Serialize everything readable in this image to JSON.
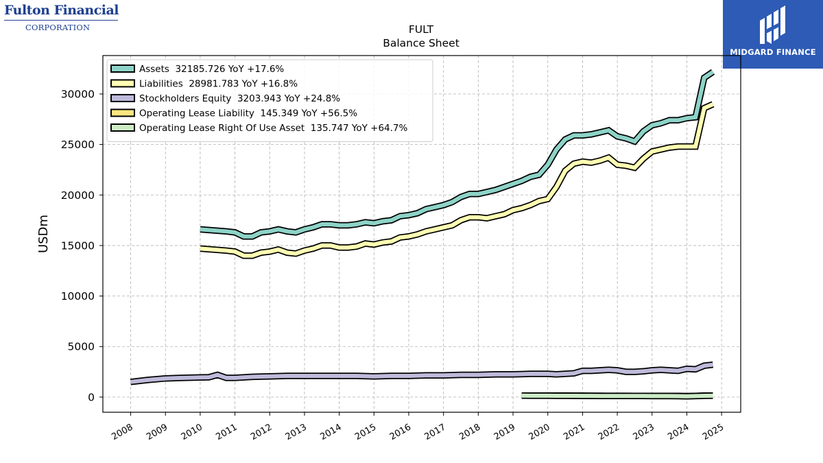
{
  "logos": {
    "left_line1": "Fulton Financial",
    "left_line2": "CORPORATION",
    "right_name": "MIDGARD FINANCE"
  },
  "chart_data": {
    "type": "line",
    "title": "FULT",
    "subtitle": "Balance  Sheet",
    "xlabel": "",
    "ylabel": "USDm",
    "xlim": [
      2007.2,
      2025.55
    ],
    "ylim": [
      -1500,
      33800
    ],
    "yticks": [
      0,
      5000,
      10000,
      15000,
      20000,
      25000,
      30000
    ],
    "xticks": [
      "2008",
      "2009",
      "2010",
      "2011",
      "2012",
      "2013",
      "2014",
      "2015",
      "2016",
      "2017",
      "2018",
      "2019",
      "2020",
      "2021",
      "2022",
      "2023",
      "2024",
      "2025"
    ],
    "grid": true,
    "legend_position": "top-left",
    "series": [
      {
        "name": "Assets",
        "legend": "Assets  32185.726 YoY +17.6%",
        "color": "#8dd3c7",
        "x": [
          2010.0,
          2010.75,
          2011.0,
          2011.25,
          2011.5,
          2011.75,
          2012.0,
          2012.25,
          2012.5,
          2012.75,
          2013.0,
          2013.25,
          2013.5,
          2013.75,
          2014.0,
          2014.25,
          2014.5,
          2014.75,
          2015.0,
          2015.25,
          2015.5,
          2015.75,
          2016.0,
          2016.25,
          2016.5,
          2016.75,
          2017.0,
          2017.25,
          2017.5,
          2017.75,
          2018.0,
          2018.25,
          2018.5,
          2018.75,
          2019.0,
          2019.25,
          2019.5,
          2019.75,
          2020.0,
          2020.25,
          2020.5,
          2020.75,
          2021.0,
          2021.25,
          2021.5,
          2021.75,
          2022.0,
          2022.25,
          2022.5,
          2022.75,
          2023.0,
          2023.25,
          2023.5,
          2023.75,
          2024.0,
          2024.25,
          2024.5,
          2024.75
        ],
        "y": [
          16600,
          16400,
          16300,
          15900,
          15900,
          16300,
          16400,
          16600,
          16400,
          16300,
          16600,
          16800,
          17100,
          17100,
          17000,
          17000,
          17100,
          17300,
          17200,
          17400,
          17500,
          17900,
          18000,
          18200,
          18600,
          18800,
          19000,
          19300,
          19800,
          20100,
          20100,
          20300,
          20500,
          20800,
          21100,
          21400,
          21800,
          22000,
          23000,
          24500,
          25500,
          25900,
          25900,
          26000,
          26200,
          26400,
          25800,
          25600,
          25300,
          26300,
          26900,
          27100,
          27400,
          27400,
          27600,
          27700,
          31600,
          32186
        ]
      },
      {
        "name": "Liabilities",
        "legend": "Liabilities  28981.783 YoY +16.8%",
        "color": "#ffffb3",
        "x": [
          2010.0,
          2010.75,
          2011.0,
          2011.25,
          2011.5,
          2011.75,
          2012.0,
          2012.25,
          2012.5,
          2012.75,
          2013.0,
          2013.25,
          2013.5,
          2013.75,
          2014.0,
          2014.25,
          2014.5,
          2014.75,
          2015.0,
          2015.25,
          2015.5,
          2015.75,
          2016.0,
          2016.25,
          2016.5,
          2016.75,
          2017.0,
          2017.25,
          2017.5,
          2017.75,
          2018.0,
          2018.25,
          2018.5,
          2018.75,
          2019.0,
          2019.25,
          2019.5,
          2019.75,
          2020.0,
          2020.25,
          2020.5,
          2020.75,
          2021.0,
          2021.25,
          2021.5,
          2021.75,
          2022.0,
          2022.25,
          2022.5,
          2022.75,
          2023.0,
          2023.25,
          2023.5,
          2023.75,
          2024.0,
          2024.25,
          2024.5,
          2024.75
        ],
        "y": [
          14700,
          14500,
          14400,
          14000,
          14000,
          14300,
          14400,
          14600,
          14300,
          14200,
          14500,
          14700,
          15000,
          15000,
          14800,
          14800,
          14900,
          15200,
          15100,
          15300,
          15400,
          15800,
          15900,
          16100,
          16400,
          16600,
          16800,
          17000,
          17500,
          17800,
          17800,
          17700,
          17900,
          18100,
          18500,
          18700,
          19000,
          19400,
          19600,
          20800,
          22400,
          23100,
          23300,
          23200,
          23400,
          23700,
          23000,
          22900,
          22700,
          23600,
          24300,
          24500,
          24700,
          24800,
          24800,
          24800,
          28600,
          28982
        ]
      },
      {
        "name": "Stockholders Equity",
        "legend": "Stockholders Equity  3203.943 YoY +24.8%",
        "color": "#bebada",
        "x": [
          2008.0,
          2008.5,
          2009.0,
          2009.5,
          2010.0,
          2010.25,
          2010.5,
          2010.75,
          2011.0,
          2011.5,
          2012.0,
          2012.5,
          2013.0,
          2013.5,
          2014.0,
          2014.5,
          2015.0,
          2015.5,
          2016.0,
          2016.5,
          2017.0,
          2017.5,
          2018.0,
          2018.5,
          2019.0,
          2019.5,
          2020.0,
          2020.25,
          2020.5,
          2020.75,
          2021.0,
          2021.25,
          2021.5,
          2021.75,
          2022.0,
          2022.25,
          2022.5,
          2022.75,
          2023.0,
          2023.25,
          2023.5,
          2023.75,
          2024.0,
          2024.25,
          2024.5,
          2024.75
        ],
        "y": [
          1500,
          1700,
          1850,
          1900,
          1950,
          1960,
          2200,
          1900,
          1900,
          2000,
          2050,
          2100,
          2100,
          2100,
          2100,
          2100,
          2050,
          2100,
          2100,
          2150,
          2150,
          2200,
          2200,
          2250,
          2250,
          2300,
          2300,
          2250,
          2300,
          2350,
          2600,
          2600,
          2650,
          2700,
          2650,
          2500,
          2500,
          2550,
          2650,
          2700,
          2650,
          2600,
          2800,
          2750,
          3100,
          3204
        ]
      },
      {
        "name": "Operating Lease Liability",
        "legend": "Operating Lease Liability  145.349 YoY +56.5%",
        "color": "#fee581",
        "x": [
          2019.25,
          2019.5,
          2019.75,
          2020.0,
          2020.25,
          2020.5,
          2020.75,
          2021.0,
          2021.25,
          2021.5,
          2021.75,
          2022.0,
          2022.25,
          2022.5,
          2022.75,
          2023.0,
          2023.25,
          2023.5,
          2023.75,
          2024.0,
          2024.25,
          2024.5,
          2024.75
        ],
        "y": [
          150,
          148,
          146,
          144,
          142,
          140,
          138,
          135,
          132,
          128,
          125,
          122,
          120,
          118,
          117,
          116,
          115,
          115,
          110,
          93,
          115,
          140,
          145
        ]
      },
      {
        "name": "Operating Lease Right Of Use Asset",
        "legend": "Operating Lease Right Of Use Asset  135.747 YoY +64.7%",
        "color": "#ccebc5",
        "x": [
          2019.25,
          2019.5,
          2019.75,
          2020.0,
          2020.25,
          2020.5,
          2020.75,
          2021.0,
          2021.25,
          2021.5,
          2021.75,
          2022.0,
          2022.25,
          2022.5,
          2022.75,
          2023.0,
          2023.25,
          2023.5,
          2023.75,
          2024.0,
          2024.25,
          2024.5,
          2024.75
        ],
        "y": [
          140,
          138,
          136,
          134,
          132,
          130,
          128,
          125,
          122,
          118,
          115,
          112,
          110,
          108,
          106,
          105,
          104,
          102,
          97,
          82,
          105,
          130,
          136
        ]
      }
    ]
  }
}
